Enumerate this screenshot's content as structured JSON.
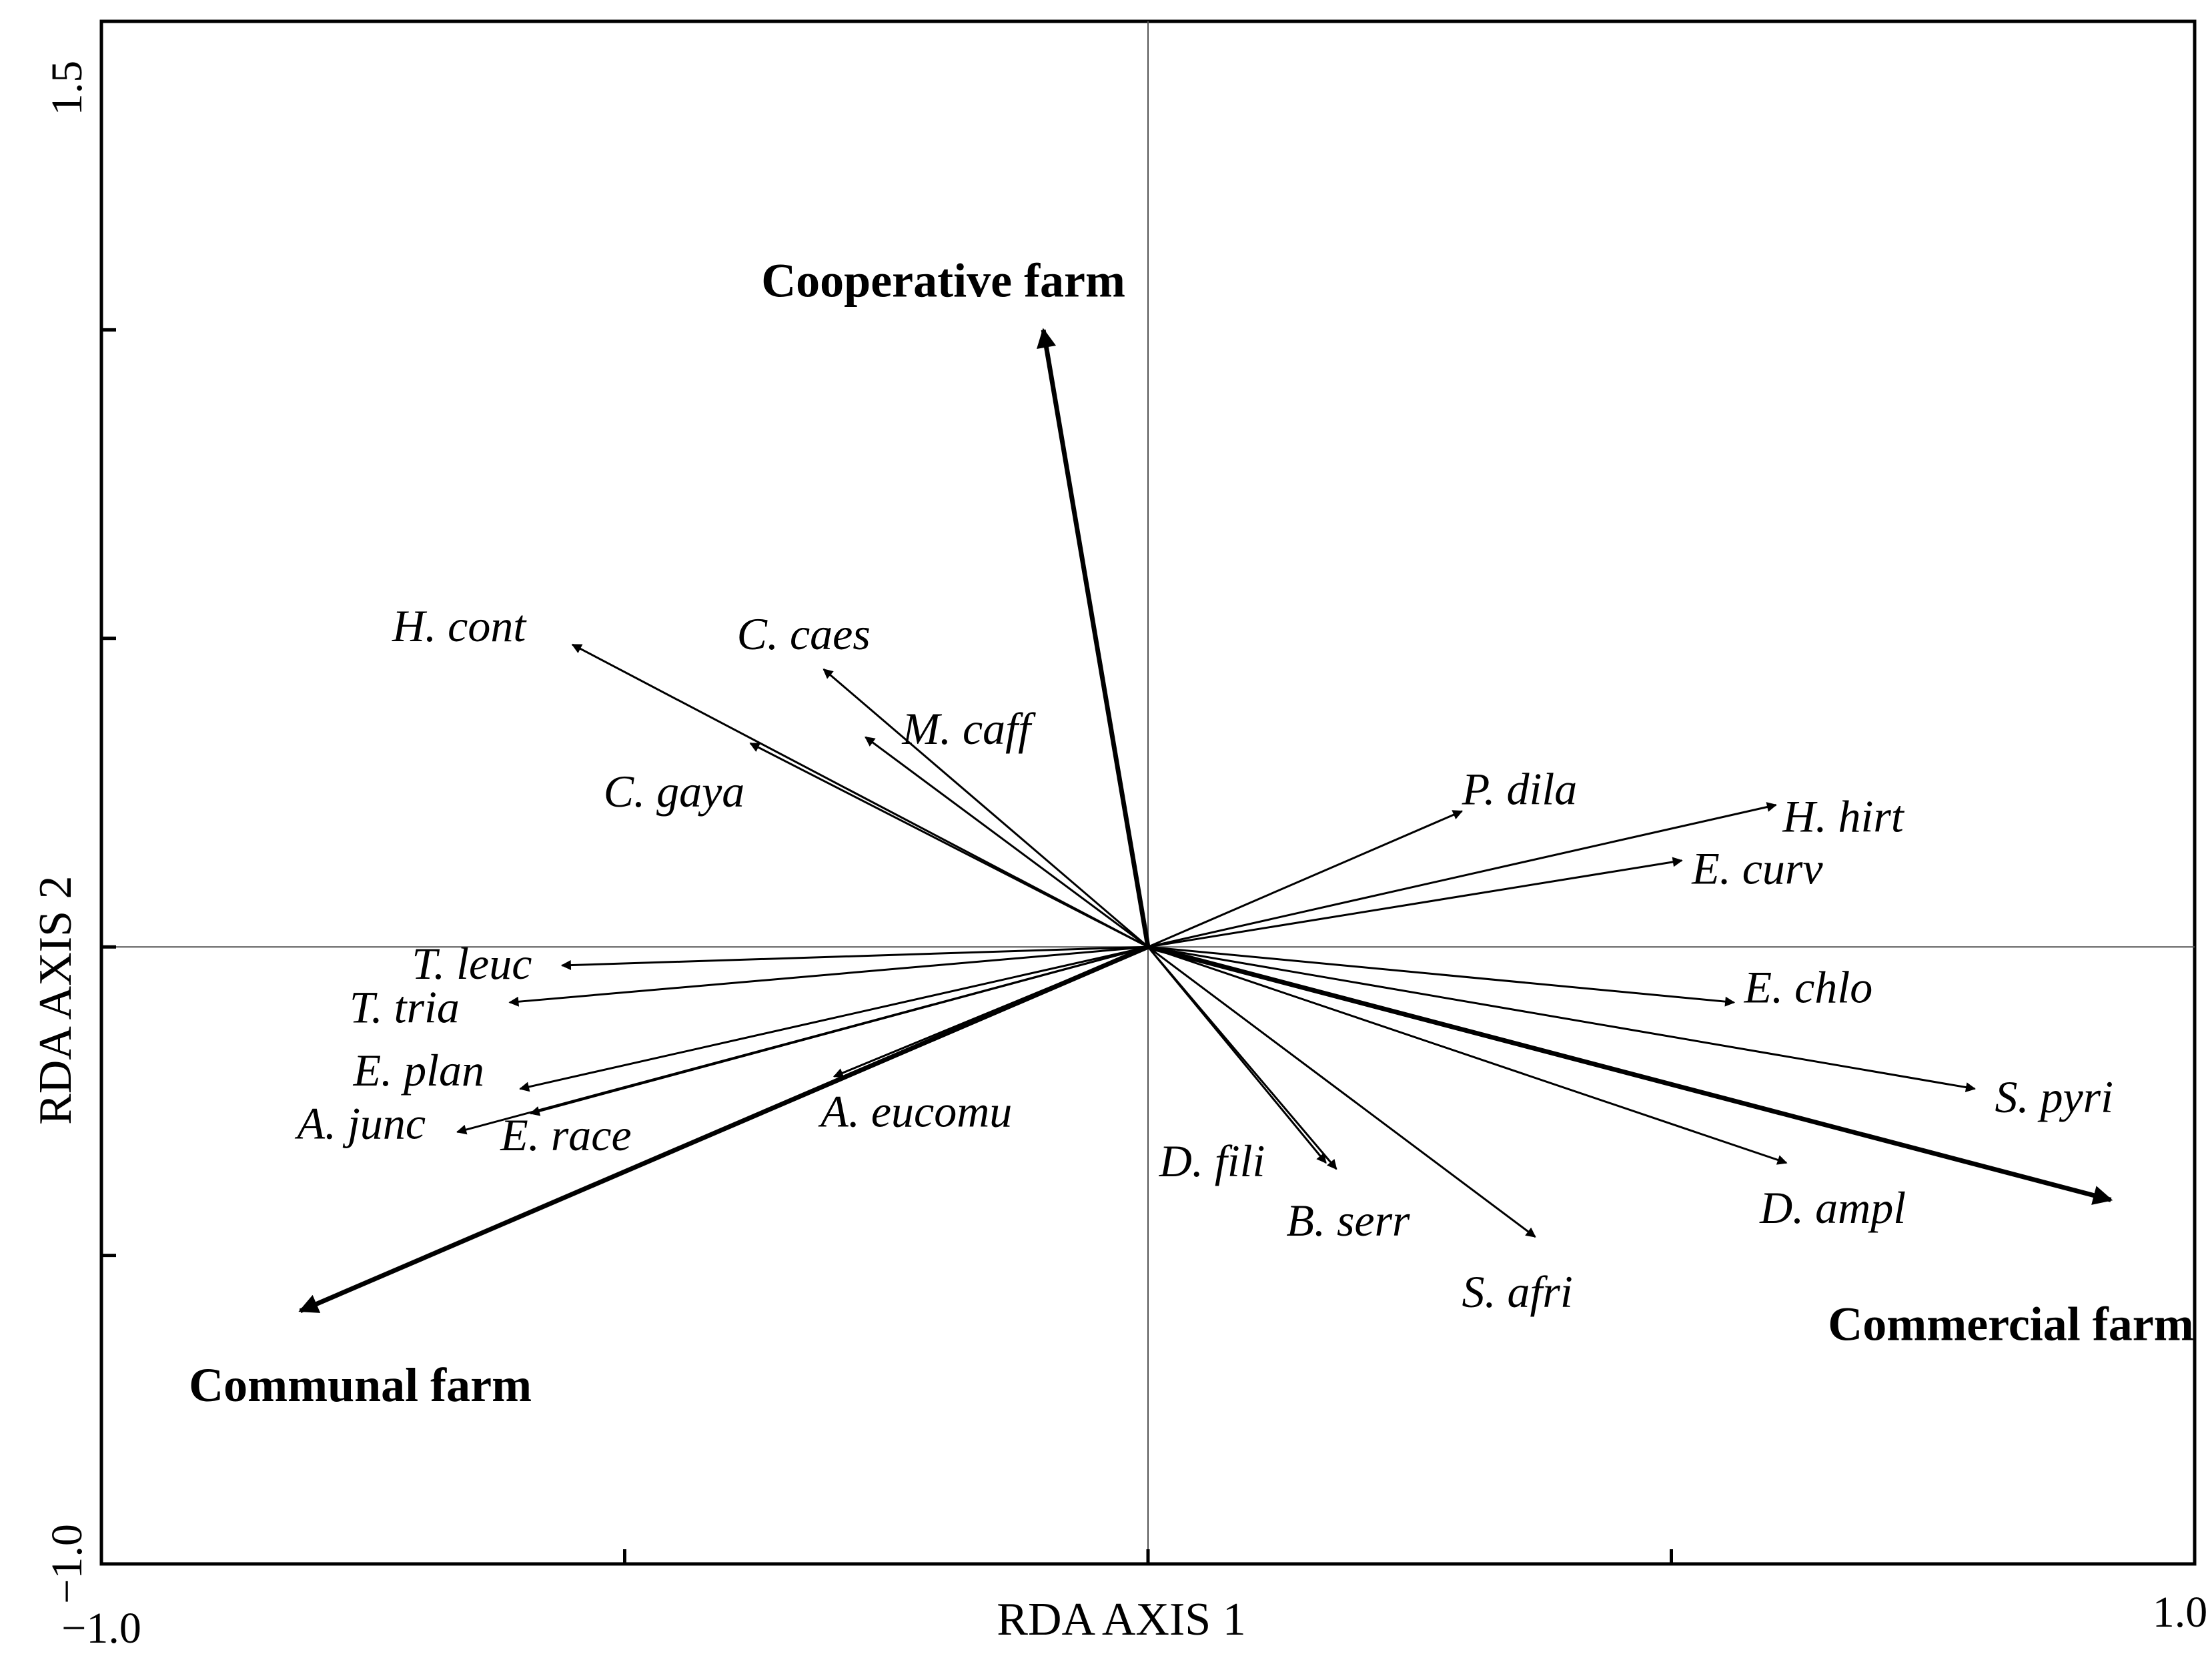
{
  "chart_data": {
    "type": "scatter",
    "subtype": "rda-biplot",
    "xlabel": "RDA AXIS 1",
    "ylabel": "RDA AXIS 2",
    "xlim": [
      -1.0,
      1.0
    ],
    "ylim": [
      -1.0,
      1.5
    ],
    "x_tick_labels": [
      "-1.0",
      "1.0"
    ],
    "y_tick_labels": [
      "-1.0",
      "1.5"
    ],
    "grid": false,
    "env_vectors": [
      {
        "label": "Cooperative farm",
        "x": -0.1,
        "y": 1.0
      },
      {
        "label": "Communal farm",
        "x": -0.81,
        "y": -0.59
      },
      {
        "label": "Commercial farm",
        "x": 0.92,
        "y": -0.41
      }
    ],
    "species_vectors": [
      {
        "label": "H. cont",
        "x": -0.55,
        "y": 0.49
      },
      {
        "label": "C. caes",
        "x": -0.31,
        "y": 0.45
      },
      {
        "label": "M. caff",
        "x": -0.27,
        "y": 0.34
      },
      {
        "label": "C. gaya",
        "x": -0.38,
        "y": 0.33
      },
      {
        "label": "T. leuc",
        "x": -0.56,
        "y": -0.03
      },
      {
        "label": "T. tria",
        "x": -0.61,
        "y": -0.09
      },
      {
        "label": "E. plan",
        "x": -0.6,
        "y": -0.23
      },
      {
        "label": "A. junc",
        "x": -0.66,
        "y": -0.3
      },
      {
        "label": "E. race",
        "x": -0.59,
        "y": -0.27
      },
      {
        "label": "A. eucomu",
        "x": -0.3,
        "y": -0.21
      },
      {
        "label": "P. dila",
        "x": 0.3,
        "y": 0.22
      },
      {
        "label": "H. hirt",
        "x": 0.6,
        "y": 0.23
      },
      {
        "label": "E. curv",
        "x": 0.51,
        "y": 0.14
      },
      {
        "label": "E. chlo",
        "x": 0.56,
        "y": -0.09
      },
      {
        "label": "S. pyri",
        "x": 0.79,
        "y": -0.23
      },
      {
        "label": "D. ampl",
        "x": 0.61,
        "y": -0.35
      },
      {
        "label": "S. afri",
        "x": 0.37,
        "y": -0.47
      },
      {
        "label": "B. serr",
        "x": 0.18,
        "y": -0.36
      },
      {
        "label": "D. fili",
        "x": 0.17,
        "y": -0.35
      }
    ]
  }
}
